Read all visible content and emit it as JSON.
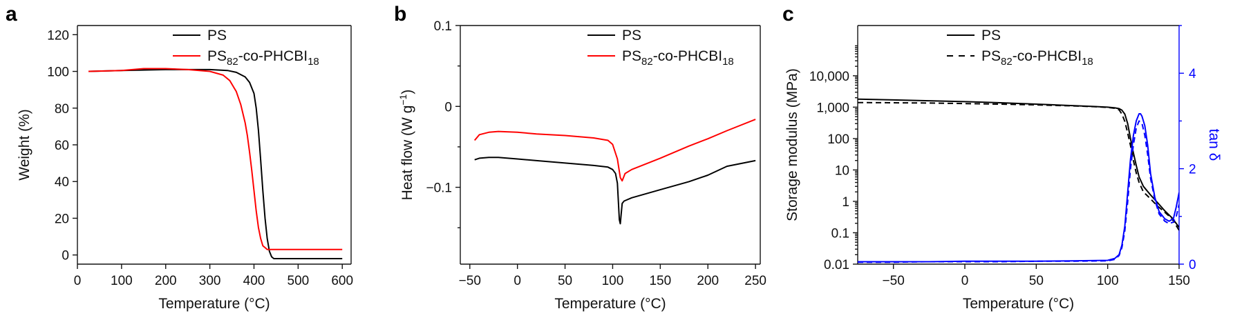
{
  "chart_data": [
    {
      "panel": "a",
      "type": "line",
      "xlabel": "Temperature (°C)",
      "ylabel": "Weight (%)",
      "xlim": [
        0,
        620
      ],
      "ylim": [
        -5,
        125
      ],
      "xticks": [
        0,
        100,
        200,
        300,
        400,
        500,
        600
      ],
      "yticks": [
        0,
        20,
        40,
        60,
        80,
        100,
        120
      ],
      "legend_position": "top-center",
      "series": [
        {
          "name": "PS",
          "name_parts": [
            {
              "t": "PS"
            }
          ],
          "color": "#000000",
          "dash": "solid",
          "x": [
            25,
            100,
            200,
            300,
            340,
            360,
            380,
            390,
            400,
            405,
            410,
            415,
            420,
            425,
            430,
            435,
            440,
            445,
            450,
            500,
            600
          ],
          "y": [
            100,
            100.5,
            101,
            101,
            100.5,
            99.5,
            97,
            94,
            88,
            80,
            68,
            52,
            35,
            20,
            9,
            2,
            -1,
            -2,
            -2,
            -2,
            -2
          ]
        },
        {
          "name": "PS82-co-PHCBI18",
          "name_parts": [
            {
              "t": "PS"
            },
            {
              "t": "82",
              "sub": true
            },
            {
              "t": "-co-PHCBI"
            },
            {
              "t": "18",
              "sub": true
            }
          ],
          "color": "#ff0000",
          "dash": "solid",
          "x": [
            25,
            100,
            150,
            200,
            250,
            300,
            330,
            345,
            360,
            370,
            380,
            385,
            390,
            395,
            400,
            405,
            410,
            415,
            420,
            425,
            430,
            440,
            460,
            500,
            600
          ],
          "y": [
            100,
            100.5,
            101.5,
            101.5,
            101,
            100,
            98,
            95,
            89,
            82,
            72,
            65,
            56,
            46,
            35,
            24,
            15,
            9,
            5,
            4,
            3,
            3,
            3,
            3,
            3
          ]
        }
      ]
    },
    {
      "panel": "b",
      "type": "line",
      "xlabel": "Temperature (°C)",
      "ylabel": "Heat flow (W g",
      "ylabel_sup": "−1",
      "ylabel_close": ")",
      "xlim": [
        -60,
        255
      ],
      "ylim": [
        -0.195,
        0.1
      ],
      "xticks": [
        -50,
        0,
        50,
        100,
        150,
        200,
        250
      ],
      "yticks": [
        -0.1,
        0,
        0.1
      ],
      "ytick_labels": [
        "−0.1",
        "0",
        "0.1"
      ],
      "legend_position": "top-right",
      "series": [
        {
          "name": "PS",
          "name_parts": [
            {
              "t": "PS"
            }
          ],
          "color": "#000000",
          "dash": "solid",
          "x": [
            -45,
            -40,
            -30,
            -20,
            0,
            20,
            50,
            80,
            95,
            100,
            103,
            105,
            107,
            108,
            110,
            112,
            120,
            150,
            180,
            200,
            220,
            250
          ],
          "y": [
            -0.066,
            -0.064,
            -0.063,
            -0.063,
            -0.065,
            -0.067,
            -0.07,
            -0.073,
            -0.075,
            -0.078,
            -0.083,
            -0.095,
            -0.14,
            -0.145,
            -0.12,
            -0.117,
            -0.113,
            -0.103,
            -0.093,
            -0.085,
            -0.074,
            -0.067
          ]
        },
        {
          "name": "PS82-co-PHCBI18",
          "name_parts": [
            {
              "t": "PS"
            },
            {
              "t": "82",
              "sub": true
            },
            {
              "t": "-co-PHCBI"
            },
            {
              "t": "18",
              "sub": true
            }
          ],
          "color": "#ff0000",
          "dash": "solid",
          "x": [
            -45,
            -40,
            -30,
            -20,
            0,
            20,
            50,
            80,
            95,
            100,
            105,
            108,
            110,
            113,
            120,
            150,
            180,
            200,
            220,
            250
          ],
          "y": [
            -0.042,
            -0.035,
            -0.032,
            -0.031,
            -0.032,
            -0.034,
            -0.036,
            -0.039,
            -0.042,
            -0.047,
            -0.065,
            -0.088,
            -0.092,
            -0.083,
            -0.078,
            -0.064,
            -0.049,
            -0.04,
            -0.03,
            -0.016
          ]
        }
      ]
    },
    {
      "panel": "c",
      "type": "line",
      "xlabel": "Temperature (°C)",
      "ylabel": "Storage modulus (MPa)",
      "ylabel_right": "tan δ",
      "xlim": [
        -75,
        150
      ],
      "ylim_log10": [
        -2,
        5.6
      ],
      "yscale": "log",
      "xticks": [
        -50,
        0,
        50,
        100,
        150
      ],
      "yticks": [
        0.01,
        0.1,
        1,
        10,
        100,
        1000,
        10000
      ],
      "ytick_labels": [
        "0.01",
        "0.1",
        "1",
        "10",
        "100",
        "1,000",
        "10,000"
      ],
      "ylim_right": [
        0,
        5
      ],
      "yticks_right": [
        0,
        2,
        4
      ],
      "right_axis_color": "#0000ff",
      "legend_position": "top-center",
      "series": [
        {
          "name": "PS",
          "name_parts": [
            {
              "t": "PS"
            }
          ],
          "color": "#000000",
          "dash": "solid",
          "axis": "left",
          "x": [
            -75,
            -50,
            -25,
            0,
            25,
            50,
            75,
            90,
            100,
            105,
            108,
            110,
            112,
            114,
            116,
            118,
            120,
            122,
            125,
            130,
            135,
            140,
            145,
            150
          ],
          "y": [
            1800,
            1700,
            1600,
            1500,
            1380,
            1250,
            1120,
            1050,
            1000,
            950,
            900,
            800,
            600,
            300,
            100,
            35,
            14,
            6,
            3,
            1.6,
            0.9,
            0.5,
            0.3,
            0.15
          ]
        },
        {
          "name": "PS82-co-PHCBI18",
          "name_parts": [
            {
              "t": "PS"
            },
            {
              "t": "82",
              "sub": true
            },
            {
              "t": "-co-PHCBI"
            },
            {
              "t": "18",
              "sub": true
            }
          ],
          "color": "#000000",
          "dash": "dashed",
          "axis": "left",
          "x": [
            -75,
            -50,
            -25,
            0,
            25,
            50,
            75,
            90,
            100,
            105,
            108,
            110,
            112,
            114,
            116,
            118,
            120,
            122,
            125,
            130,
            135,
            140,
            145,
            150
          ],
          "y": [
            1400,
            1380,
            1350,
            1300,
            1250,
            1180,
            1100,
            1040,
            980,
            920,
            820,
            600,
            350,
            150,
            60,
            20,
            8,
            4,
            2,
            1.2,
            0.7,
            0.45,
            0.28,
            0.12
          ]
        },
        {
          "name": "PS tan δ",
          "color": "#0000ff",
          "dash": "solid",
          "axis": "right",
          "x": [
            -75,
            -50,
            -25,
            0,
            25,
            50,
            75,
            100,
            105,
            108,
            110,
            112,
            114,
            116,
            118,
            120,
            122,
            123,
            124,
            126,
            128,
            130,
            133,
            136,
            140,
            143,
            146,
            148,
            150
          ],
          "y": [
            0.05,
            0.05,
            0.05,
            0.06,
            0.06,
            0.06,
            0.07,
            0.08,
            0.12,
            0.2,
            0.4,
            0.8,
            1.5,
            2.2,
            2.7,
            3.0,
            3.15,
            3.15,
            3.1,
            2.9,
            2.5,
            1.9,
            1.4,
            1.1,
            0.95,
            0.9,
            0.95,
            1.2,
            1.5
          ]
        },
        {
          "name": "PS82-co-PHCBI18 tan δ",
          "color": "#0000ff",
          "dash": "dashed",
          "axis": "right",
          "x": [
            -75,
            -50,
            -25,
            0,
            25,
            50,
            75,
            100,
            105,
            108,
            110,
            112,
            114,
            116,
            118,
            120,
            122,
            124,
            126,
            128,
            130,
            133,
            136,
            140,
            143,
            146,
            148,
            150
          ],
          "y": [
            0.04,
            0.04,
            0.05,
            0.05,
            0.05,
            0.06,
            0.06,
            0.07,
            0.1,
            0.18,
            0.35,
            0.7,
            1.3,
            2.0,
            2.5,
            2.85,
            3.0,
            2.95,
            2.7,
            2.3,
            1.8,
            1.35,
            1.05,
            0.9,
            0.85,
            0.88,
            1.0,
            1.25
          ]
        }
      ]
    }
  ]
}
